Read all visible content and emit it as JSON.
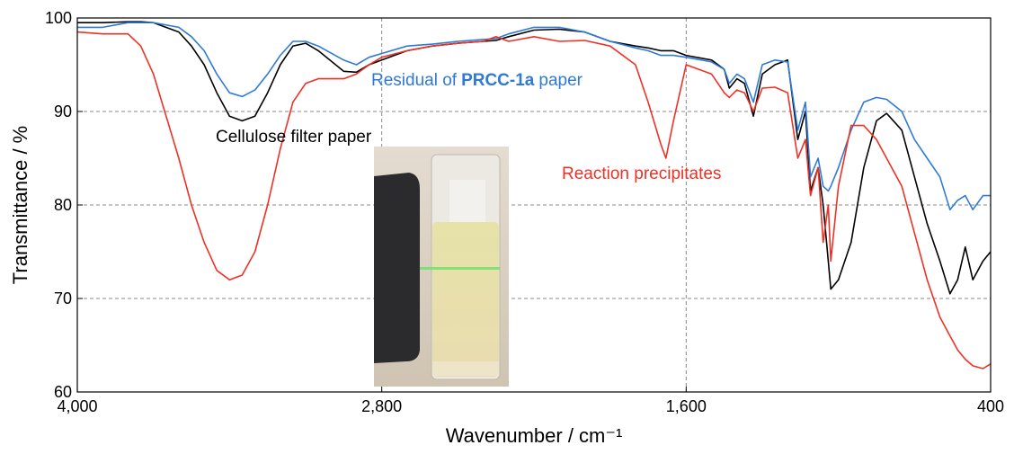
{
  "chart_data": {
    "type": "line",
    "x_label": "Wavenumber / cm⁻¹",
    "y_label": "Transmittance / %",
    "xlim": [
      4000,
      400
    ],
    "ylim": [
      60,
      100
    ],
    "xticks": [
      {
        "value": 4000,
        "label": "4,000"
      },
      {
        "value": 2800,
        "label": "2,800"
      },
      {
        "value": 1600,
        "label": "1,600"
      },
      400
    ],
    "yticks": [
      60,
      70,
      80,
      90,
      100
    ],
    "grid": true,
    "x": [
      4000,
      3900,
      3800,
      3750,
      3700,
      3600,
      3550,
      3500,
      3450,
      3400,
      3350,
      3300,
      3250,
      3200,
      3150,
      3100,
      3050,
      2950,
      2900,
      2850,
      2800,
      2700,
      2600,
      2500,
      2400,
      2350,
      2300,
      2200,
      2100,
      2000,
      1900,
      1800,
      1750,
      1700,
      1680,
      1650,
      1600,
      1500,
      1450,
      1430,
      1400,
      1370,
      1335,
      1300,
      1250,
      1200,
      1160,
      1130,
      1110,
      1080,
      1060,
      1040,
      1030,
      1000,
      950,
      900,
      850,
      810,
      750,
      700,
      650,
      600,
      560,
      530,
      500,
      470,
      430,
      400
    ],
    "series": [
      {
        "name": [
          "Cellulose filter paper"
        ],
        "color": "#000000",
        "values": [
          99.5,
          99.5,
          99.6,
          99.6,
          99.5,
          98.5,
          97,
          95,
          92,
          89.5,
          89,
          89.5,
          92,
          95,
          97,
          97.3,
          96.5,
          94.3,
          94.2,
          95,
          95.5,
          96.5,
          97,
          97.3,
          97.5,
          97.6,
          98,
          98.7,
          98.8,
          98.5,
          97.5,
          97,
          96.8,
          96.5,
          96.5,
          96.5,
          96,
          95.5,
          94.5,
          92.5,
          93.5,
          93,
          89.5,
          94,
          95,
          95.5,
          87,
          90,
          81.5,
          84,
          80,
          74,
          71,
          72,
          76,
          84,
          89,
          89.8,
          88,
          83,
          78,
          74,
          70.5,
          72,
          75.5,
          72,
          74,
          75
        ]
      },
      {
        "name": [
          "Residual of",
          "PRCC-1a",
          "paper"
        ],
        "color": "#2f7ad6",
        "values": [
          99,
          99,
          99.5,
          99.5,
          99.5,
          99,
          98,
          96.5,
          94,
          92,
          91.6,
          92.3,
          94,
          96,
          97.5,
          97.5,
          97,
          95.5,
          95,
          95.8,
          96.2,
          97,
          97.2,
          97.5,
          97.7,
          97.8,
          98.3,
          99,
          99,
          98.5,
          97.5,
          96.8,
          96.5,
          96,
          96,
          96,
          95.8,
          95.3,
          94.5,
          93,
          94,
          93.5,
          91,
          95,
          95.5,
          95.3,
          88,
          91,
          83,
          85,
          82,
          81.5,
          82,
          84,
          88,
          91,
          91.5,
          91.3,
          90,
          87,
          85,
          83,
          79.5,
          80.5,
          81,
          79.5,
          81,
          81
        ]
      },
      {
        "name": [
          "Reaction precipitates"
        ],
        "color": "#ee3124",
        "values": [
          98.5,
          98.3,
          98.3,
          97,
          94,
          85,
          80,
          76,
          73,
          72,
          72.5,
          75,
          80,
          86,
          91,
          93,
          93.5,
          93.5,
          94,
          95,
          95.8,
          96.5,
          97,
          97.3,
          97.5,
          98,
          97.5,
          98,
          97.5,
          97.6,
          97,
          95,
          91,
          86.5,
          85,
          89,
          95,
          94,
          92,
          91.5,
          92.3,
          92,
          90,
          92.5,
          92.6,
          92,
          85,
          87,
          81,
          84,
          76,
          80,
          74,
          82,
          88.5,
          88.5,
          87,
          85,
          82,
          77,
          72,
          68,
          66,
          64.5,
          63.5,
          62.8,
          62.5,
          63
        ]
      }
    ]
  }
}
